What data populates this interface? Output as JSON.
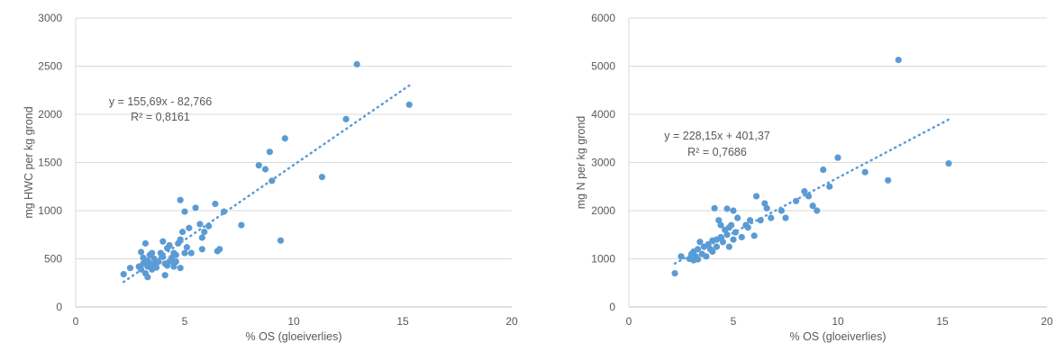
{
  "chart_data": [
    {
      "type": "scatter",
      "xlabel": "% OS (gloeiverlies)",
      "ylabel": "mg HWC per kg grond",
      "xlim": [
        0,
        20
      ],
      "ylim": [
        0,
        3000
      ],
      "xticks": [
        0,
        5,
        10,
        15,
        20
      ],
      "yticks": [
        0,
        500,
        1000,
        1500,
        2000,
        2500,
        3000
      ],
      "grid": "horizontal",
      "legend": "none",
      "marker_color": "#5B9BD5",
      "trendline": {
        "type": "linear",
        "slope": 155.69,
        "intercept": -82.766,
        "x_range": [
          2.2,
          15.3
        ],
        "equation": "y = 155,69x - 82,766",
        "r2": "R² = 0,8161"
      },
      "points": [
        [
          2.2,
          340
        ],
        [
          2.5,
          405
        ],
        [
          2.9,
          420
        ],
        [
          3.0,
          570
        ],
        [
          3.0,
          390
        ],
        [
          3.1,
          450
        ],
        [
          3.1,
          510
        ],
        [
          3.2,
          350
        ],
        [
          3.2,
          660
        ],
        [
          3.3,
          310
        ],
        [
          3.3,
          480
        ],
        [
          3.3,
          420
        ],
        [
          3.4,
          540
        ],
        [
          3.4,
          450
        ],
        [
          3.5,
          390
        ],
        [
          3.5,
          560
        ],
        [
          3.6,
          500
        ],
        [
          3.6,
          440
        ],
        [
          3.7,
          410
        ],
        [
          3.8,
          470
        ],
        [
          3.9,
          560
        ],
        [
          4.0,
          680
        ],
        [
          4.0,
          520
        ],
        [
          4.1,
          330
        ],
        [
          4.1,
          450
        ],
        [
          4.2,
          430
        ],
        [
          4.2,
          610
        ],
        [
          4.3,
          470
        ],
        [
          4.3,
          640
        ],
        [
          4.4,
          510
        ],
        [
          4.4,
          480
        ],
        [
          4.5,
          560
        ],
        [
          4.5,
          420
        ],
        [
          4.6,
          540
        ],
        [
          4.6,
          470
        ],
        [
          4.7,
          660
        ],
        [
          4.8,
          1110
        ],
        [
          4.8,
          700
        ],
        [
          4.8,
          405
        ],
        [
          4.9,
          780
        ],
        [
          5.0,
          990
        ],
        [
          5.0,
          560
        ],
        [
          5.1,
          620
        ],
        [
          5.2,
          820
        ],
        [
          5.3,
          560
        ],
        [
          5.5,
          1030
        ],
        [
          5.7,
          860
        ],
        [
          5.8,
          600
        ],
        [
          5.8,
          720
        ],
        [
          5.9,
          780
        ],
        [
          6.1,
          840
        ],
        [
          6.4,
          1070
        ],
        [
          6.5,
          580
        ],
        [
          6.6,
          600
        ],
        [
          6.8,
          990
        ],
        [
          7.6,
          850
        ],
        [
          8.4,
          1470
        ],
        [
          8.7,
          1430
        ],
        [
          8.9,
          1610
        ],
        [
          9.0,
          1310
        ],
        [
          9.4,
          690
        ],
        [
          9.6,
          1750
        ],
        [
          11.3,
          1350
        ],
        [
          12.4,
          1950
        ],
        [
          12.9,
          2520
        ],
        [
          15.3,
          2100
        ]
      ]
    },
    {
      "type": "scatter",
      "xlabel": "% OS (gloeiverlies)",
      "ylabel": "mg N per kg grond",
      "xlim": [
        0,
        20
      ],
      "ylim": [
        0,
        6000
      ],
      "xticks": [
        0,
        5,
        10,
        15,
        20
      ],
      "yticks": [
        0,
        1000,
        2000,
        3000,
        4000,
        5000,
        6000
      ],
      "grid": "horizontal",
      "legend": "none",
      "marker_color": "#5B9BD5",
      "trendline": {
        "type": "linear",
        "slope": 228.15,
        "intercept": 401.37,
        "x_range": [
          2.2,
          15.3
        ],
        "equation": "y = 228,15x + 401,37",
        "r2": "R² = 0,7686"
      },
      "points": [
        [
          2.2,
          700
        ],
        [
          2.5,
          1050
        ],
        [
          2.9,
          1000
        ],
        [
          3.0,
          1100
        ],
        [
          3.1,
          970
        ],
        [
          3.1,
          1150
        ],
        [
          3.2,
          1050
        ],
        [
          3.3,
          1200
        ],
        [
          3.3,
          990
        ],
        [
          3.4,
          1350
        ],
        [
          3.5,
          1100
        ],
        [
          3.6,
          1250
        ],
        [
          3.7,
          1050
        ],
        [
          3.8,
          1300
        ],
        [
          3.9,
          1200
        ],
        [
          4.0,
          1380
        ],
        [
          4.0,
          1150
        ],
        [
          4.1,
          2050
        ],
        [
          4.2,
          1400
        ],
        [
          4.2,
          1250
        ],
        [
          4.3,
          1800
        ],
        [
          4.4,
          1450
        ],
        [
          4.4,
          1700
        ],
        [
          4.5,
          1350
        ],
        [
          4.6,
          1600
        ],
        [
          4.7,
          2040
        ],
        [
          4.7,
          1500
        ],
        [
          4.8,
          1650
        ],
        [
          4.8,
          1250
        ],
        [
          4.9,
          1700
        ],
        [
          5.0,
          2000
        ],
        [
          5.0,
          1400
        ],
        [
          5.1,
          1550
        ],
        [
          5.2,
          1850
        ],
        [
          5.4,
          1450
        ],
        [
          5.6,
          1700
        ],
        [
          5.7,
          1650
        ],
        [
          5.8,
          1800
        ],
        [
          6.0,
          1480
        ],
        [
          6.1,
          2300
        ],
        [
          6.3,
          1800
        ],
        [
          6.5,
          2150
        ],
        [
          6.6,
          2050
        ],
        [
          6.8,
          1850
        ],
        [
          7.3,
          2000
        ],
        [
          7.5,
          1850
        ],
        [
          8.0,
          2200
        ],
        [
          8.4,
          2400
        ],
        [
          8.6,
          2300
        ],
        [
          8.8,
          2100
        ],
        [
          9.0,
          2000
        ],
        [
          9.3,
          2850
        ],
        [
          9.6,
          2500
        ],
        [
          10.0,
          3100
        ],
        [
          11.3,
          2800
        ],
        [
          12.4,
          2630
        ],
        [
          12.9,
          5130
        ],
        [
          15.3,
          2980
        ]
      ]
    }
  ]
}
